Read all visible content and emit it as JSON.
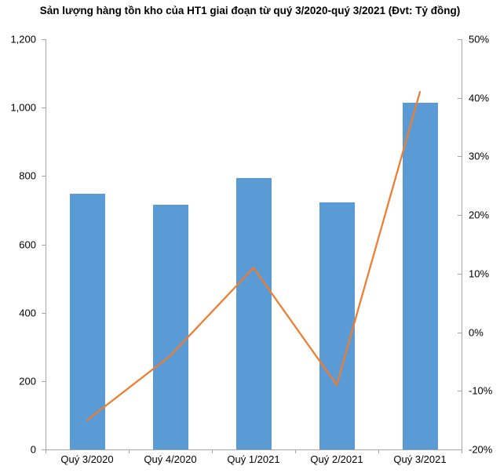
{
  "title": "Sản lượng hàng tồn kho của HT1 giai đoạn từ quý 3/2020-quý 3/2021 (Đvt: Tỷ đồng)",
  "chart_data": {
    "type": "combo",
    "title": "Sản lượng hàng tồn kho của HT1 giai đoạn từ quý 3/2020-quý 3/2021 (Đvt: Tỷ đồng)",
    "categories": [
      "Quý 3/2020",
      "Quý 4/2020",
      "Quý 1/2021",
      "Quý 2/2021",
      "Quý 3/2021"
    ],
    "series": [
      {
        "id": "inventory-bars",
        "type": "bar",
        "axis": "left",
        "color": "#5B9BD5",
        "values": [
          748,
          716,
          795,
          722,
          1015
        ]
      },
      {
        "id": "growth-line",
        "type": "line",
        "axis": "right",
        "color": "#ED7D31",
        "unit": "%",
        "values": [
          -15,
          -4,
          11,
          -9,
          41
        ]
      }
    ],
    "left_axis": {
      "min": 0,
      "max": 1200,
      "step": 200,
      "tick_labels": [
        "0",
        "200",
        "400",
        "600",
        "800",
        "1,000",
        "1,200"
      ]
    },
    "right_axis": {
      "min": -20,
      "max": 50,
      "step": 10,
      "tick_labels": [
        "-20%",
        "-10%",
        "0%",
        "10%",
        "20%",
        "30%",
        "40%",
        "50%"
      ]
    },
    "grid": false,
    "legend": "none",
    "xlabel": "",
    "ylabel": ""
  },
  "colors": {
    "bar": "#5B9BD5",
    "line": "#ED7D31",
    "axis": "#A6A6A6",
    "text": "#000000",
    "background": "#FFFFFF"
  }
}
